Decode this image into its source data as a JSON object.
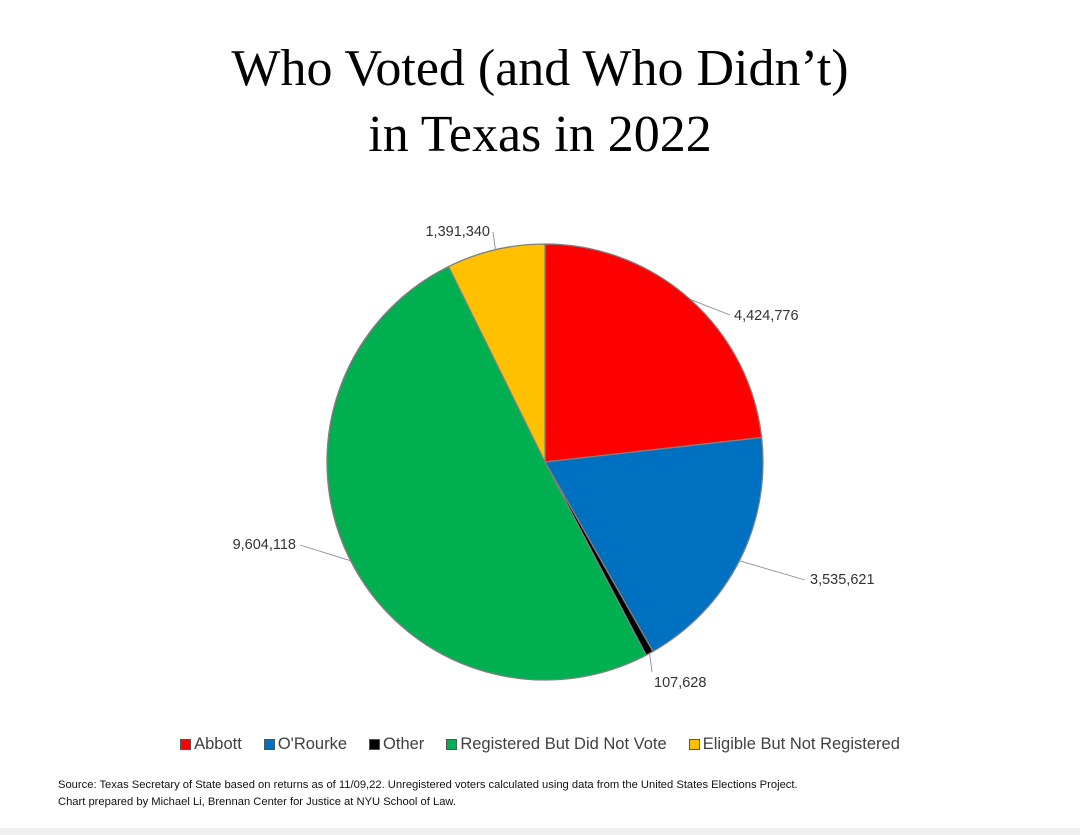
{
  "chart_data": {
    "type": "pie",
    "title": [
      "Who Voted (and Who Didn’t)",
      "in Texas in 2022"
    ],
    "slices": [
      {
        "name": "Abbott",
        "value": 4424776,
        "label": "4,424,776",
        "color": "#ff0000"
      },
      {
        "name": "O'Rourke",
        "value": 3535621,
        "label": "3,535,621",
        "color": "#0070c0"
      },
      {
        "name": "Other",
        "value": 107628,
        "label": "107,628",
        "color": "#000000"
      },
      {
        "name": "Registered But Did Not Vote",
        "value": 9604118,
        "label": "9,604,118",
        "color": "#00b050"
      },
      {
        "name": "Eligible But Not Registered",
        "value": 1391340,
        "label": "1,391,340",
        "color": "#ffc000"
      }
    ],
    "legend_position": "bottom",
    "source": [
      "Source: Texas Secretary of State based on returns as of 11/09,22. Unregistered voters calculated using data from the United States Elections Project.",
      "Chart prepared by Michael Li, Brennan Center for Justice at NYU School of Law."
    ]
  }
}
